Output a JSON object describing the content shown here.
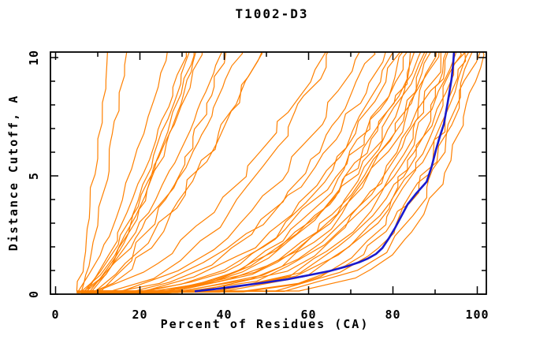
{
  "page": {
    "background": "#ffffff"
  },
  "chart_data": {
    "type": "line",
    "title": "T1002-D3",
    "xlabel": "Percent of Residues (CA)",
    "ylabel": "Distance Cutoff, A",
    "xlim": [
      0,
      100
    ],
    "ylim": [
      0,
      10
    ],
    "grid": false,
    "legend": "none",
    "x_axis": {
      "major_ticks": [
        0,
        20,
        40,
        60,
        80,
        100
      ],
      "minor_ticks": [
        10,
        30,
        50,
        70,
        90
      ],
      "tick_labels": [
        "0",
        "20",
        "40",
        "60",
        "80",
        "100"
      ]
    },
    "y_axis": {
      "major_ticks": [
        0,
        5,
        10
      ],
      "minor_ticks": [
        1,
        2,
        3,
        4,
        6,
        7,
        8,
        9
      ],
      "tick_labels": [
        "0",
        "5",
        "10"
      ]
    },
    "colors": {
      "models": "#ff8000",
      "highlight": "#1a1acd",
      "axis": "#000000"
    },
    "highlight_series": {
      "name": "highlighted model GDT curve",
      "color": "#1a1acd",
      "points": [
        [
          33,
          0.12
        ],
        [
          38,
          0.22
        ],
        [
          45,
          0.38
        ],
        [
          50,
          0.5
        ],
        [
          55,
          0.63
        ],
        [
          60,
          0.8
        ],
        [
          65,
          0.98
        ],
        [
          69,
          1.17
        ],
        [
          72,
          1.35
        ],
        [
          74,
          1.5
        ],
        [
          76,
          1.7
        ],
        [
          77.5,
          1.95
        ],
        [
          79,
          2.35
        ],
        [
          80.5,
          2.8
        ],
        [
          82,
          3.3
        ],
        [
          83.5,
          3.8
        ],
        [
          85.5,
          4.25
        ],
        [
          88,
          4.75
        ],
        [
          89.2,
          5.4
        ],
        [
          90.2,
          6.1
        ],
        [
          91.1,
          6.65
        ],
        [
          92.1,
          7.2
        ],
        [
          93,
          8.1
        ],
        [
          93.9,
          9.1
        ],
        [
          94.3,
          9.77
        ],
        [
          94.5,
          10.3
        ]
      ]
    },
    "model_series": {
      "name": "server model GDT curves",
      "color": "#ff8000",
      "curve_model": "x(y) = x0 + (xt - x0) * (y/10.25)^p ; xt = percent where curve reaches 10 A",
      "curves": [
        {
          "x0": 5,
          "xt": 12.5,
          "p": 0.85
        },
        {
          "x0": 6,
          "xt": 16.7,
          "p": 0.8
        },
        {
          "x0": 5,
          "xt": 26.4,
          "p": 0.75
        },
        {
          "x0": 7,
          "xt": 31,
          "p": 0.8
        },
        {
          "x0": 6,
          "xt": 32,
          "p": 0.7
        },
        {
          "x0": 8,
          "xt": 33,
          "p": 0.75
        },
        {
          "x0": 5,
          "xt": 33.5,
          "p": 0.65
        },
        {
          "x0": 7,
          "xt": 34.5,
          "p": 0.72
        },
        {
          "x0": 6,
          "xt": 39.5,
          "p": 0.7
        },
        {
          "x0": 8,
          "xt": 40.5,
          "p": 0.65
        },
        {
          "x0": 5,
          "xt": 44,
          "p": 0.68
        },
        {
          "x0": 7,
          "xt": 48,
          "p": 0.6
        },
        {
          "x0": 6,
          "xt": 49,
          "p": 0.65
        },
        {
          "x0": 5,
          "xt": 63.5,
          "p": 0.55
        },
        {
          "x0": 8,
          "xt": 65,
          "p": 0.5
        },
        {
          "x0": 6,
          "xt": 72,
          "p": 0.45
        },
        {
          "x0": 7,
          "xt": 75,
          "p": 0.4
        },
        {
          "x0": 5,
          "xt": 78.5,
          "p": 0.42
        },
        {
          "x0": 8,
          "xt": 80,
          "p": 0.35
        },
        {
          "x0": 6,
          "xt": 81.5,
          "p": 0.38
        },
        {
          "x0": 7,
          "xt": 83,
          "p": 0.32
        },
        {
          "x0": 5,
          "xt": 84,
          "p": 0.36
        },
        {
          "x0": 6,
          "xt": 85,
          "p": 0.3
        },
        {
          "x0": 8,
          "xt": 86,
          "p": 0.34
        },
        {
          "x0": 7,
          "xt": 87,
          "p": 0.28
        },
        {
          "x0": 5,
          "xt": 88,
          "p": 0.33
        },
        {
          "x0": 6,
          "xt": 88.5,
          "p": 0.26
        },
        {
          "x0": 8,
          "xt": 89.5,
          "p": 0.31
        },
        {
          "x0": 7,
          "xt": 90.5,
          "p": 0.24
        },
        {
          "x0": 5,
          "xt": 91,
          "p": 0.3
        },
        {
          "x0": 6,
          "xt": 92,
          "p": 0.22
        },
        {
          "x0": 8,
          "xt": 93,
          "p": 0.28
        },
        {
          "x0": 7,
          "xt": 93.5,
          "p": 0.2
        },
        {
          "x0": 5,
          "xt": 94.5,
          "p": 0.26
        },
        {
          "x0": 6,
          "xt": 95.5,
          "p": 0.18
        },
        {
          "x0": 8,
          "xt": 96,
          "p": 0.24
        },
        {
          "x0": 7,
          "xt": 97,
          "p": 0.16
        },
        {
          "x0": 5,
          "xt": 98,
          "p": 0.22
        },
        {
          "x0": 6,
          "xt": 99,
          "p": 0.15
        },
        {
          "x0": 8,
          "xt": 100,
          "p": 0.2
        },
        {
          "x0": 7,
          "xt": 101,
          "p": 0.14
        }
      ]
    }
  }
}
